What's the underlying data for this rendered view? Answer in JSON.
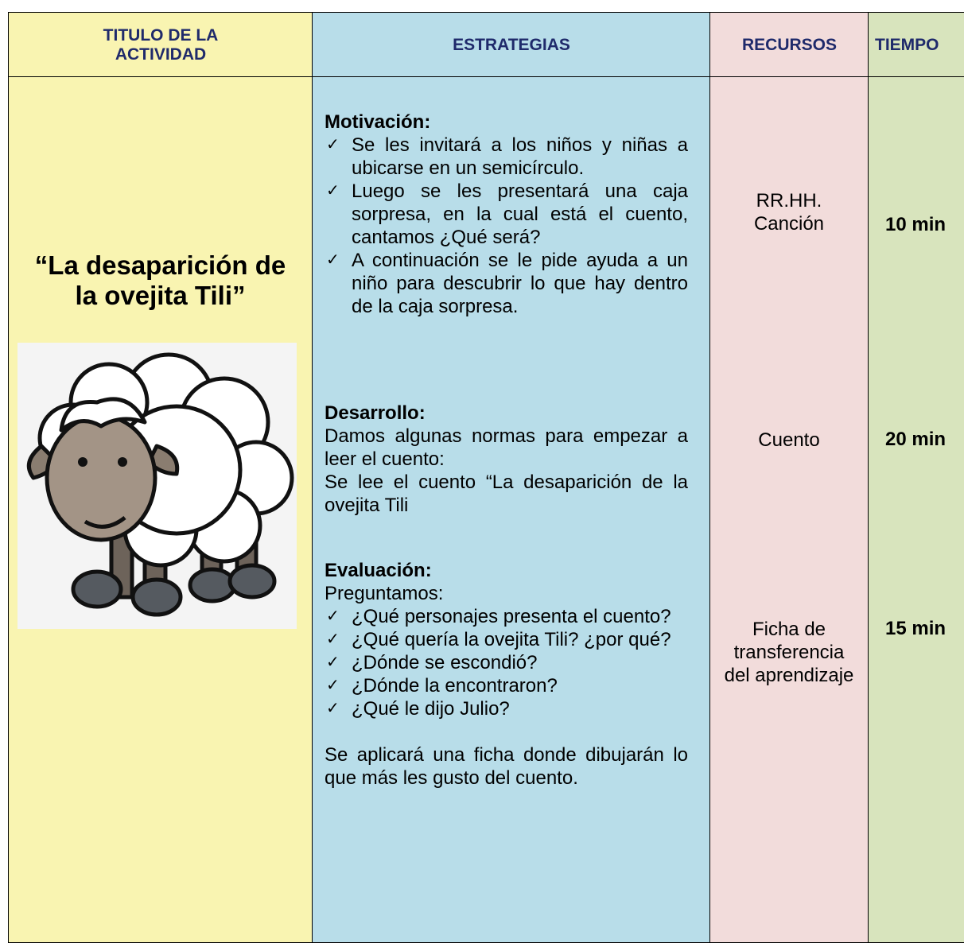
{
  "table": {
    "headers": [
      "TITULO DE LA ACTIVIDAD",
      "ESTRATEGIAS",
      "RECURSOS",
      "TIEMPO"
    ],
    "activity_title": "“La desaparición de la ovejita Tili”",
    "strategies": {
      "motivation": {
        "heading": "Motivación:",
        "items": [
          "Se les invitará a los niños y niñas a ubicarse en un semicírculo.",
          "Luego se les presentará una caja sorpresa, en la cual está el cuento, cantamos ¿Qué será?",
          "A continuación se le pide ayuda a un niño para descubrir lo que hay dentro de la caja sorpresa."
        ]
      },
      "development": {
        "heading": "Desarrollo:",
        "paragraphs": [
          "Damos algunas normas para empezar a leer el cuento:",
          "Se lee el cuento “La desaparición de la ovejita Tili"
        ]
      },
      "evaluation": {
        "heading": "Evaluación:",
        "intro": "Preguntamos:",
        "items": [
          "¿Qué personajes presenta el cuento?",
          "¿Qué quería la ovejita Tili? ¿por qué?",
          "¿Dónde se escondió?",
          "¿Dónde la encontraron?",
          "¿Qué le dijo Julio?"
        ],
        "closing": "Se aplicará una ficha donde dibujarán lo que más les gusto del cuento."
      }
    },
    "resources": [
      "RR.HH.\nCanción",
      "Cuento",
      "Ficha de transferencia del aprendizaje"
    ],
    "times": [
      "10 min",
      "20 min",
      "15 min"
    ]
  }
}
